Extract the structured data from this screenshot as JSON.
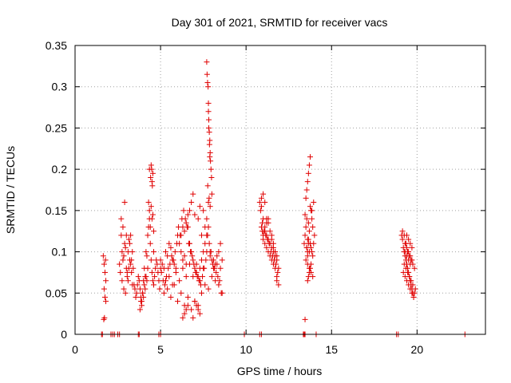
{
  "chart_data": {
    "type": "scatter",
    "title": "Day 301 of 2021, SRMTID for receiver vacs",
    "xlabel": "GPS time / hours",
    "ylabel": "SRMTID / TECUs",
    "xlim": [
      0,
      24
    ],
    "ylim": [
      0,
      0.35
    ],
    "xticks": [
      0,
      5,
      10,
      15,
      20
    ],
    "xtick_labels": [
      "0",
      "5",
      "10",
      "15",
      "20"
    ],
    "yticks": [
      0,
      0.05,
      0.1,
      0.15,
      0.2,
      0.25,
      0.3,
      0.35
    ],
    "ytick_labels": [
      "0",
      "0.05",
      "0.1",
      "0.15",
      "0.2",
      "0.25",
      "0.3",
      "0.35"
    ],
    "grid": true,
    "marker": "+",
    "color": "#e00000",
    "series": [
      {
        "name": "SRMTID",
        "x": [
          1.65,
          1.7,
          1.75,
          1.8,
          1.7,
          1.75,
          1.8,
          1.68,
          1.72,
          1.78,
          2.6,
          2.65,
          2.7,
          2.75,
          2.8,
          2.85,
          2.9,
          2.95,
          3.0,
          3.05,
          3.1,
          3.15,
          3.2,
          3.25,
          3.3,
          3.35,
          2.7,
          2.8,
          2.9,
          3.0,
          3.1,
          3.2,
          3.3,
          2.75,
          2.85,
          2.95,
          3.05,
          3.15,
          3.25,
          3.35,
          3.4,
          3.45,
          3.5,
          3.55,
          3.6,
          3.65,
          3.7,
          3.75,
          3.8,
          3.85,
          3.9,
          3.95,
          4.0,
          4.05,
          4.1,
          4.15,
          4.2,
          4.25,
          4.3,
          4.35,
          4.4,
          4.45,
          4.5,
          4.55,
          4.6,
          4.65,
          4.7,
          4.75,
          4.8,
          4.85,
          4.9,
          4.95,
          5.0,
          3.8,
          3.9,
          4.0,
          4.1,
          4.2,
          3.85,
          3.95,
          4.05,
          4.15,
          4.25,
          4.35,
          4.45,
          4.55,
          4.3,
          4.4,
          4.5,
          4.6,
          4.35,
          4.45,
          4.55,
          4.42,
          4.5,
          4.48,
          4.52,
          4.6,
          5.0,
          5.1,
          5.2,
          5.3,
          5.4,
          5.5,
          5.6,
          5.7,
          5.8,
          5.9,
          6.0,
          6.1,
          6.2,
          6.3,
          6.4,
          6.5,
          6.6,
          6.7,
          6.8,
          6.9,
          7.0,
          7.1,
          7.2,
          7.3,
          7.4,
          7.5,
          7.6,
          7.7,
          7.8,
          7.9,
          8.0,
          8.1,
          8.2,
          8.3,
          8.4,
          8.5,
          8.6,
          5.05,
          5.15,
          5.25,
          5.35,
          5.45,
          5.55,
          5.65,
          5.75,
          5.85,
          5.95,
          6.05,
          6.15,
          6.25,
          6.35,
          6.45,
          6.55,
          6.65,
          6.75,
          6.85,
          6.95,
          7.05,
          7.15,
          7.25,
          7.35,
          7.45,
          7.55,
          7.65,
          7.75,
          7.85,
          7.95,
          8.05,
          8.15,
          8.25,
          8.35,
          8.45,
          8.55,
          5.2,
          5.4,
          5.6,
          5.8,
          6.0,
          6.2,
          6.4,
          6.6,
          6.8,
          7.0,
          7.2,
          7.4,
          7.6,
          7.8,
          8.0,
          8.2,
          8.4,
          8.6,
          5.3,
          5.5,
          5.7,
          5.9,
          6.1,
          6.3,
          6.5,
          6.7,
          6.9,
          7.1,
          7.3,
          7.5,
          7.7,
          7.9,
          8.1,
          8.3,
          8.5,
          6.2,
          6.3,
          6.4,
          6.5,
          6.6,
          6.7,
          6.8,
          6.9,
          7.0,
          7.2,
          7.3,
          7.4,
          7.5,
          7.6,
          7.7,
          7.8,
          7.7,
          7.72,
          7.75,
          7.78,
          7.8,
          7.82,
          7.85,
          7.88,
          7.9,
          7.92,
          7.95,
          7.98,
          8.0,
          7.76,
          7.84,
          7.9,
          7.86,
          7.82,
          7.8,
          7.88,
          6.3,
          6.4,
          6.5,
          6.6,
          7.0,
          7.1,
          7.2,
          7.3,
          6.9,
          10.8,
          10.9,
          11.0,
          11.1,
          11.2,
          11.3,
          11.4,
          11.5,
          11.6,
          11.7,
          11.8,
          11.9,
          10.85,
          10.95,
          11.05,
          11.15,
          11.25,
          11.35,
          11.45,
          11.55,
          11.65,
          11.75,
          11.85,
          11.0,
          11.1,
          11.2,
          11.3,
          11.4,
          11.5,
          11.6,
          11.7,
          11.8,
          10.9,
          11.0,
          11.1,
          11.2,
          11.3,
          11.4,
          11.5,
          11.6,
          11.7,
          11.8,
          11.9,
          10.9,
          10.95,
          11.0,
          11.1,
          11.2,
          11.3,
          11.5,
          11.6,
          11.7,
          11.8,
          13.4,
          13.45,
          13.5,
          13.55,
          13.6,
          13.65,
          13.7,
          13.75,
          13.8,
          13.85,
          13.9,
          13.95,
          14.0,
          13.45,
          13.55,
          13.65,
          13.75,
          13.85,
          13.95,
          13.5,
          13.6,
          13.7,
          13.8,
          13.9,
          13.5,
          13.55,
          13.6,
          13.65,
          13.7,
          13.75,
          13.8,
          13.85,
          13.9,
          13.6,
          13.65,
          13.7,
          13.75,
          13.8,
          13.6,
          13.55,
          13.6,
          13.65,
          13.7,
          13.45,
          19.1,
          19.15,
          19.2,
          19.25,
          19.3,
          19.35,
          19.4,
          19.45,
          19.5,
          19.55,
          19.6,
          19.65,
          19.7,
          19.75,
          19.8,
          19.85,
          19.9,
          19.15,
          19.25,
          19.35,
          19.45,
          19.55,
          19.65,
          19.75,
          19.85,
          19.2,
          19.3,
          19.4,
          19.5,
          19.6,
          19.7,
          19.8,
          19.3,
          19.4,
          19.5,
          19.6,
          19.7,
          19.25,
          19.35,
          19.45,
          19.55,
          19.65,
          19.75,
          19.4,
          19.5,
          19.6,
          19.7,
          19.3,
          19.4,
          19.5,
          19.6,
          1.55,
          1.6,
          2.1,
          2.2,
          2.3,
          2.5,
          2.6,
          3.7,
          3.75,
          4.9,
          5.0,
          9.9,
          10.8,
          10.9,
          13.35,
          13.4,
          13.45,
          14.1,
          18.8,
          18.9,
          22.8
        ],
        "y": [
          0.095,
          0.085,
          0.075,
          0.065,
          0.055,
          0.045,
          0.04,
          0.018,
          0.02,
          0.09,
          0.085,
          0.075,
          0.12,
          0.1,
          0.09,
          0.095,
          0.11,
          0.105,
          0.08,
          0.07,
          0.065,
          0.115,
          0.09,
          0.085,
          0.075,
          0.06,
          0.14,
          0.13,
          0.16,
          0.12,
          0.1,
          0.11,
          0.09,
          0.065,
          0.055,
          0.05,
          0.075,
          0.08,
          0.12,
          0.1,
          0.08,
          0.06,
          0.055,
          0.045,
          0.05,
          0.06,
          0.07,
          0.065,
          0.055,
          0.045,
          0.04,
          0.05,
          0.065,
          0.08,
          0.07,
          0.1,
          0.095,
          0.12,
          0.13,
          0.14,
          0.11,
          0.09,
          0.075,
          0.065,
          0.06,
          0.07,
          0.08,
          0.09,
          0.085,
          0.075,
          0.065,
          0.055,
          0.08,
          0.03,
          0.035,
          0.045,
          0.055,
          0.065,
          0.04,
          0.05,
          0.06,
          0.07,
          0.08,
          0.15,
          0.155,
          0.145,
          0.16,
          0.13,
          0.14,
          0.125,
          0.2,
          0.205,
          0.195,
          0.19,
          0.185,
          0.2,
          0.18,
          0.1,
          0.09,
          0.085,
          0.08,
          0.1,
          0.095,
          0.11,
          0.105,
          0.09,
          0.085,
          0.08,
          0.12,
          0.11,
          0.1,
          0.09,
          0.095,
          0.085,
          0.13,
          0.11,
          0.1,
          0.09,
          0.08,
          0.085,
          0.07,
          0.08,
          0.09,
          0.1,
          0.11,
          0.12,
          0.13,
          0.1,
          0.09,
          0.08,
          0.085,
          0.095,
          0.1,
          0.11,
          0.09,
          0.075,
          0.065,
          0.06,
          0.07,
          0.08,
          0.085,
          0.095,
          0.09,
          0.1,
          0.11,
          0.13,
          0.12,
          0.14,
          0.15,
          0.14,
          0.13,
          0.11,
          0.1,
          0.095,
          0.085,
          0.075,
          0.07,
          0.065,
          0.06,
          0.07,
          0.08,
          0.09,
          0.12,
          0.11,
          0.1,
          0.085,
          0.08,
          0.075,
          0.07,
          0.065,
          0.05,
          0.05,
          0.055,
          0.045,
          0.06,
          0.04,
          0.05,
          0.035,
          0.045,
          0.03,
          0.04,
          0.035,
          0.05,
          0.06,
          0.055,
          0.07,
          0.065,
          0.06,
          0.05,
          0.065,
          0.07,
          0.06,
          0.075,
          0.065,
          0.08,
          0.07,
          0.085,
          0.07,
          0.075,
          0.065,
          0.08,
          0.1,
          0.095,
          0.09,
          0.085,
          0.08,
          0.12,
          0.13,
          0.125,
          0.135,
          0.145,
          0.15,
          0.16,
          0.17,
          0.145,
          0.14,
          0.155,
          0.12,
          0.15,
          0.13,
          0.14,
          0.16,
          0.33,
          0.315,
          0.305,
          0.3,
          0.27,
          0.26,
          0.245,
          0.235,
          0.22,
          0.21,
          0.2,
          0.19,
          0.17,
          0.18,
          0.165,
          0.155,
          0.23,
          0.25,
          0.28,
          0.215,
          0.02,
          0.025,
          0.03,
          0.035,
          0.04,
          0.035,
          0.03,
          0.025,
          0.02,
          0.16,
          0.155,
          0.14,
          0.13,
          0.12,
          0.115,
          0.11,
          0.105,
          0.1,
          0.095,
          0.09,
          0.08,
          0.15,
          0.135,
          0.125,
          0.12,
          0.115,
          0.11,
          0.1,
          0.095,
          0.09,
          0.085,
          0.075,
          0.17,
          0.16,
          0.14,
          0.135,
          0.125,
          0.115,
          0.105,
          0.1,
          0.095,
          0.13,
          0.12,
          0.11,
          0.105,
          0.1,
          0.095,
          0.09,
          0.085,
          0.08,
          0.07,
          0.06,
          0.165,
          0.125,
          0.115,
          0.125,
          0.135,
          0.14,
          0.12,
          0.11,
          0.1,
          0.065,
          0.11,
          0.12,
          0.13,
          0.105,
          0.1,
          0.115,
          0.125,
          0.11,
          0.105,
          0.1,
          0.095,
          0.11,
          0.12,
          0.145,
          0.14,
          0.135,
          0.155,
          0.15,
          0.16,
          0.09,
          0.085,
          0.08,
          0.075,
          0.07,
          0.165,
          0.175,
          0.185,
          0.195,
          0.205,
          0.215,
          0.15,
          0.14,
          0.13,
          0.065,
          0.07,
          0.075,
          0.08,
          0.085,
          0.095,
          0.105,
          0.115,
          0.11,
          0.1,
          0.018,
          0.12,
          0.115,
          0.105,
          0.1,
          0.095,
          0.09,
          0.085,
          0.08,
          0.075,
          0.07,
          0.065,
          0.06,
          0.055,
          0.05,
          0.045,
          0.05,
          0.055,
          0.125,
          0.12,
          0.11,
          0.1,
          0.095,
          0.09,
          0.085,
          0.08,
          0.075,
          0.07,
          0.065,
          0.06,
          0.055,
          0.05,
          0.045,
          0.11,
          0.105,
          0.1,
          0.095,
          0.09,
          0.085,
          0.08,
          0.075,
          0.07,
          0.065,
          0.06,
          0.12,
          0.115,
          0.11,
          0.105,
          0.1,
          0.095,
          0.09,
          0.085,
          0.0,
          0.0,
          0.0,
          0.0,
          0.0,
          0.0,
          0.0,
          0.0,
          0.0,
          0.0,
          0.0,
          0.0,
          0.0,
          0.0,
          0.0,
          0.0,
          0.0,
          0.0,
          0.0,
          0.0,
          0.0
        ]
      }
    ]
  }
}
